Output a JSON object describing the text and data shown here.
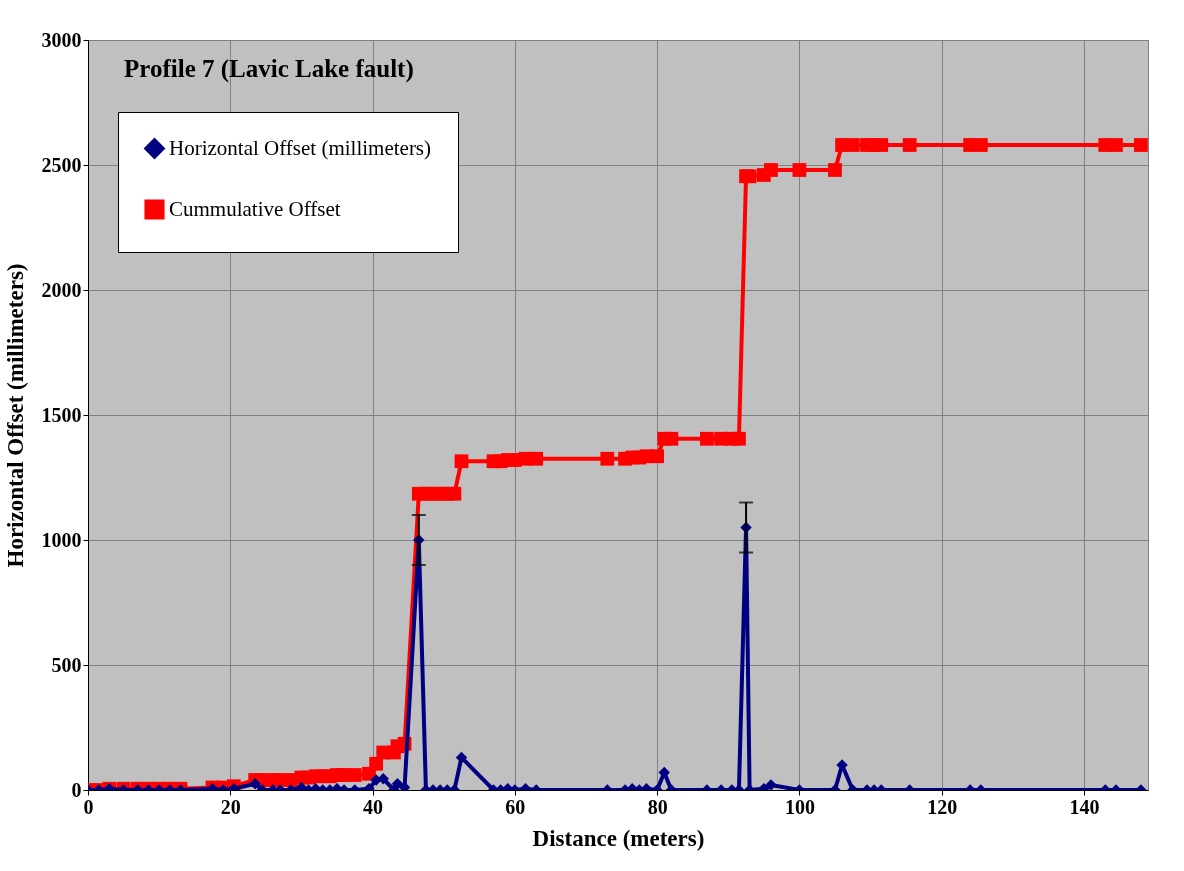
{
  "chart_data": {
    "type": "line",
    "title": "Profile 7 (Lavic Lake fault)",
    "xlabel": "Distance (meters)",
    "ylabel": "Horizontal Offset (millimeters)",
    "x": [
      0,
      1.5,
      3,
      5,
      7,
      8.5,
      10,
      11.5,
      13,
      17.5,
      19,
      20.5,
      23.5,
      24.5,
      26,
      27,
      28.5,
      30,
      31,
      32,
      33,
      34,
      35,
      36,
      37.5,
      39.5,
      40.5,
      41.5,
      43,
      43.5,
      44.5,
      46.5,
      47.5,
      48.5,
      49.5,
      50.5,
      51.5,
      52.5,
      57,
      58,
      59,
      60,
      61.5,
      63,
      73,
      75.5,
      76.5,
      77.5,
      78.5,
      80,
      81,
      82,
      87,
      89,
      90.5,
      91.5,
      92.5,
      93,
      95,
      96,
      100,
      105,
      106,
      107.5,
      109.5,
      110.5,
      111.5,
      115.5,
      124,
      125.5,
      143,
      144.5,
      148
    ],
    "series": [
      {
        "name": "Horizontal Offset (millimeters)",
        "color": "#000080",
        "marker": "diamond",
        "values": [
          0,
          0,
          5,
          0,
          0,
          0,
          0,
          0,
          0,
          5,
          0,
          5,
          25,
          0,
          0,
          0,
          0,
          10,
          0,
          5,
          0,
          0,
          5,
          0,
          0,
          5,
          40,
          45,
          0,
          25,
          10,
          1000,
          0,
          0,
          0,
          0,
          0,
          130,
          0,
          0,
          5,
          0,
          5,
          0,
          0,
          0,
          5,
          0,
          5,
          0,
          70,
          0,
          0,
          0,
          0,
          0,
          1050,
          0,
          5,
          20,
          0,
          0,
          100,
          0,
          0,
          0,
          0,
          0,
          0,
          0,
          0,
          0,
          0
        ],
        "errors": [
          null,
          null,
          null,
          null,
          null,
          null,
          null,
          null,
          null,
          null,
          null,
          null,
          null,
          null,
          null,
          null,
          null,
          null,
          null,
          null,
          null,
          null,
          null,
          null,
          null,
          null,
          null,
          null,
          null,
          null,
          null,
          100,
          null,
          null,
          null,
          null,
          null,
          null,
          null,
          null,
          null,
          null,
          null,
          null,
          null,
          null,
          null,
          null,
          null,
          null,
          null,
          null,
          null,
          null,
          null,
          null,
          100,
          null,
          null,
          null,
          null,
          null,
          null,
          null,
          null,
          null,
          null,
          null,
          null,
          null,
          null,
          null,
          null
        ]
      },
      {
        "name": "Cummulative Offset",
        "color": "#ff0000",
        "marker": "square",
        "values": [
          0,
          0,
          5,
          5,
          5,
          5,
          5,
          5,
          5,
          10,
          10,
          15,
          40,
          40,
          40,
          40,
          40,
          50,
          50,
          55,
          55,
          55,
          60,
          60,
          60,
          65,
          105,
          150,
          150,
          175,
          185,
          1185,
          1185,
          1185,
          1185,
          1185,
          1185,
          1315,
          1315,
          1315,
          1320,
          1320,
          1325,
          1325,
          1325,
          1325,
          1330,
          1330,
          1335,
          1335,
          1405,
          1405,
          1405,
          1405,
          1405,
          1405,
          2455,
          2455,
          2460,
          2480,
          2480,
          2480,
          2580,
          2580,
          2580,
          2580,
          2580,
          2580,
          2580,
          2580,
          2580,
          2580,
          2580
        ]
      }
    ],
    "xlim": [
      0,
      149
    ],
    "xticks": [
      0,
      20,
      40,
      60,
      80,
      100,
      120,
      140
    ],
    "ylim": [
      0,
      3000
    ],
    "yticks": [
      0,
      500,
      {
        "value": 1000,
        "label": "1000"
      },
      {
        "value": 1500,
        "label": "1500"
      },
      {
        "value": 2000,
        "label": "2000"
      },
      {
        "value": 2500,
        "label": "2500"
      },
      {
        "value": 3000,
        "label": "3000"
      }
    ],
    "grid": true,
    "legend": "top left"
  }
}
